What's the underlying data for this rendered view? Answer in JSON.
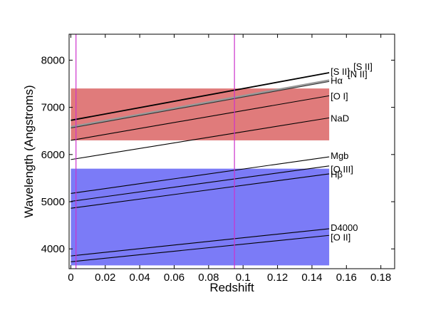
{
  "chart_data": {
    "type": "line",
    "title": "",
    "xlabel": "Redshift",
    "ylabel": "Wavelength (Angstroms)",
    "xlim": [
      -0.001,
      0.188
    ],
    "ylim": [
      3580,
      8550
    ],
    "grid": false,
    "xticks": [
      0,
      0.02,
      0.04,
      0.06,
      0.08,
      0.1,
      0.12,
      0.14,
      0.16,
      0.18
    ],
    "xtick_labels": [
      "0",
      "0.02",
      "0.04",
      "0.06",
      "0.08",
      "0.1",
      "0.12",
      "0.14",
      "0.16",
      "0.18"
    ],
    "yticks": [
      4000,
      5000,
      6000,
      7000,
      8000
    ],
    "ytick_labels": [
      "4000",
      "5000",
      "6000",
      "7000",
      "8000"
    ],
    "bands": [
      {
        "y0": 6300,
        "y1": 7400,
        "x0": 0,
        "x1": 0.15,
        "color": "#e07b7b"
      },
      {
        "y0": 3650,
        "y1": 5700,
        "x0": 0,
        "x1": 0.15,
        "color": "#7b7bf7"
      }
    ],
    "vlines": [
      {
        "x": 0.003,
        "color": "#cc33cc"
      },
      {
        "x": 0.095,
        "color": "#cc33cc"
      }
    ],
    "x_range": [
      0,
      0.15
    ],
    "series": [
      {
        "label": "[S II]",
        "rest": 6725,
        "color": "#000000",
        "width": 1.8
      },
      {
        "label": "[S II]",
        "rest": 6725,
        "color": "#000000",
        "width": 0.0,
        "label_only": true
      },
      {
        "label": "[N II]",
        "rest": 6585,
        "color": "#999999",
        "width": 2.6
      },
      {
        "label": "Hα",
        "rest": 6563,
        "color": "#333333",
        "width": 1.1
      },
      {
        "label": "[O I]",
        "rest": 6300,
        "color": "#000000",
        "width": 1.1
      },
      {
        "label": "NaD",
        "rest": 5893,
        "color": "#000000",
        "width": 1.1
      },
      {
        "label": "Mgb",
        "rest": 5175,
        "color": "#000000",
        "width": 1.1
      },
      {
        "label": "[O III]",
        "rest": 5007,
        "color": "#000000",
        "width": 1.1
      },
      {
        "label": "Hβ",
        "rest": 4861,
        "color": "#000000",
        "width": 1.1
      },
      {
        "label": "D4000",
        "rest": 3850,
        "color": "#000000",
        "width": 1.1
      },
      {
        "label": "[O II]",
        "rest": 3727,
        "color": "#000000",
        "width": 1.1
      }
    ],
    "label_offsets": [
      {
        "label": "[S II]",
        "dx": 2,
        "dy": 3
      },
      {
        "label": "[S II]",
        "dx": 34,
        "dy": -4
      },
      {
        "label": "[N II]",
        "dx": 26,
        "dy": -4
      },
      {
        "label": "Hα",
        "dx": 2,
        "dy": 3
      },
      {
        "label": "[O I]",
        "dx": 2,
        "dy": 5
      },
      {
        "label": "NaD",
        "dx": 2,
        "dy": 5
      },
      {
        "label": "Mgb",
        "dx": 2,
        "dy": 3
      },
      {
        "label": "[O III]",
        "dx": 2,
        "dy": 9
      },
      {
        "label": "Hβ",
        "dx": 2,
        "dy": 5
      },
      {
        "label": "D4000",
        "dx": 2,
        "dy": 3
      },
      {
        "label": "[O II]",
        "dx": 2,
        "dy": 7
      }
    ]
  }
}
